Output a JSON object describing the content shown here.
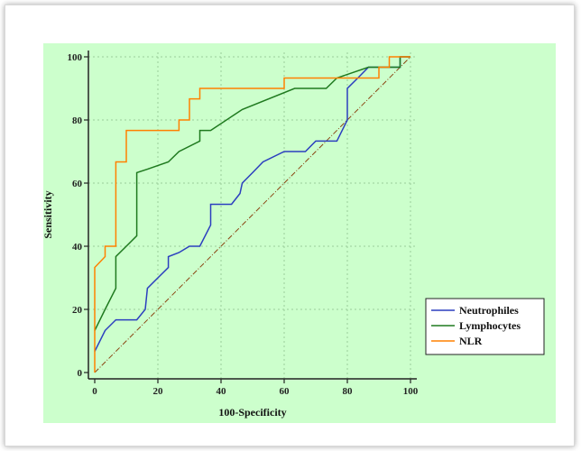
{
  "chart_data": {
    "type": "line",
    "title": "",
    "xlabel": "100-Specificity",
    "ylabel": "Sensitivity",
    "xlim": [
      0,
      100
    ],
    "ylim": [
      0,
      100
    ],
    "x_ticks": [
      "0",
      "20",
      "40",
      "60",
      "80",
      "100"
    ],
    "y_ticks": [
      "0",
      "20",
      "40",
      "60",
      "80",
      "100"
    ],
    "grid": "dotted",
    "legend_position": "bottom-right",
    "colors": {
      "plot_background": "#ccffcc",
      "diagonal": "#8b4513"
    },
    "series": [
      {
        "name": "Neutrophiles",
        "color": "#2b3fbf",
        "points": [
          [
            0,
            6.7
          ],
          [
            3.3,
            13.3
          ],
          [
            6.7,
            16.7
          ],
          [
            13.3,
            16.7
          ],
          [
            16,
            20
          ],
          [
            16.7,
            26.7
          ],
          [
            20,
            30
          ],
          [
            23.3,
            33.3
          ],
          [
            23.3,
            36.7
          ],
          [
            26.7,
            38
          ],
          [
            30,
            40
          ],
          [
            33.3,
            40
          ],
          [
            36.7,
            46.7
          ],
          [
            36.7,
            53.3
          ],
          [
            43.3,
            53.3
          ],
          [
            46,
            56.7
          ],
          [
            46.7,
            60
          ],
          [
            50,
            63.3
          ],
          [
            53.3,
            66.7
          ],
          [
            60,
            70
          ],
          [
            66.7,
            70
          ],
          [
            70,
            73.3
          ],
          [
            76.7,
            73.3
          ],
          [
            80,
            80
          ],
          [
            80,
            90
          ],
          [
            83.3,
            93.3
          ],
          [
            86.7,
            96.7
          ],
          [
            96.7,
            96.7
          ],
          [
            96.7,
            100
          ],
          [
            100,
            100
          ]
        ]
      },
      {
        "name": "Lymphocytes",
        "color": "#1f7a1f",
        "points": [
          [
            0,
            13.3
          ],
          [
            3.3,
            20
          ],
          [
            6.7,
            26.7
          ],
          [
            6.7,
            36.7
          ],
          [
            10,
            40
          ],
          [
            13.3,
            43.3
          ],
          [
            13.3,
            63.3
          ],
          [
            16.7,
            64.4
          ],
          [
            23.3,
            66.7
          ],
          [
            26.7,
            70
          ],
          [
            33.3,
            73.3
          ],
          [
            33.3,
            76.7
          ],
          [
            36.7,
            76.7
          ],
          [
            46.7,
            83.3
          ],
          [
            63.3,
            90
          ],
          [
            73.3,
            90
          ],
          [
            76.7,
            93.3
          ],
          [
            86.7,
            96.7
          ],
          [
            96.7,
            96.7
          ],
          [
            96.7,
            100
          ],
          [
            100,
            100
          ]
        ]
      },
      {
        "name": "NLR",
        "color": "#ff8000",
        "points": [
          [
            0,
            0
          ],
          [
            0,
            33.3
          ],
          [
            3.3,
            36.7
          ],
          [
            3.3,
            40
          ],
          [
            6.7,
            40
          ],
          [
            6.7,
            66.7
          ],
          [
            10,
            66.7
          ],
          [
            10,
            76.7
          ],
          [
            26.7,
            76.7
          ],
          [
            26.7,
            80
          ],
          [
            30,
            80
          ],
          [
            30,
            86.7
          ],
          [
            33.3,
            86.7
          ],
          [
            33.3,
            90
          ],
          [
            60,
            90
          ],
          [
            60,
            93.3
          ],
          [
            90,
            93.3
          ],
          [
            90,
            96.7
          ],
          [
            93.3,
            96.7
          ],
          [
            93.3,
            100
          ],
          [
            100,
            100
          ]
        ]
      }
    ]
  }
}
